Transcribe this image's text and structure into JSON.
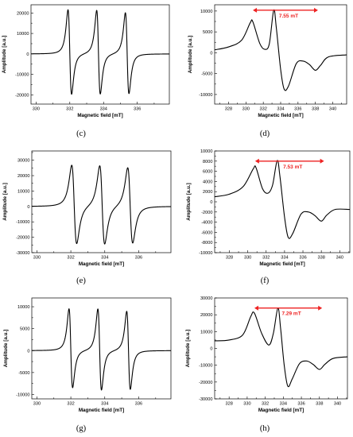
{
  "figure": {
    "panels": [
      {
        "id": "c",
        "caption": "(c)"
      },
      {
        "id": "d",
        "caption": "(d)"
      },
      {
        "id": "e",
        "caption": "(e)"
      },
      {
        "id": "f",
        "caption": "(f)"
      },
      {
        "id": "g",
        "caption": "(g)"
      },
      {
        "id": "h",
        "caption": "(h)"
      }
    ]
  },
  "chart_data": [
    {
      "id": "c",
      "type": "line",
      "caption": "(c)",
      "xlabel": "Magnetic field [mT]",
      "ylabel": "Amplitude [a.u.]",
      "xlim": [
        329.7,
        337.9
      ],
      "ylim": [
        -24500,
        24000
      ],
      "xticks": [
        330,
        332,
        334,
        336
      ],
      "yticks": [
        -20000,
        -10000,
        0,
        10000,
        20000
      ],
      "line_color": "#000000",
      "series": [
        {
          "kind": "sharp_triplet",
          "centers": [
            332.0,
            333.7,
            335.4
          ],
          "peak_to_peak_width_mT": 0.16,
          "positive_peaks": [
            21500,
            21300,
            20200
          ],
          "negative_peaks": [
            -19800,
            -19600,
            -19300
          ]
        }
      ]
    },
    {
      "id": "d",
      "type": "line",
      "caption": "(d)",
      "xlabel": "Magnetic field [mT]",
      "ylabel": "Amplitude [a.u.]",
      "xlim": [
        326.4,
        341.6
      ],
      "ylim": [
        -12300,
        11500
      ],
      "xticks": [
        328,
        330,
        332,
        334,
        336,
        338,
        340
      ],
      "yticks": [
        -10000,
        -5000,
        0,
        5000,
        10000
      ],
      "line_color": "#000000",
      "series": [
        {
          "kind": "broad_powder",
          "points": [
            [
              326.4,
              700
            ],
            [
              328.0,
              1400
            ],
            [
              329.5,
              3000
            ],
            [
              330.5,
              7200
            ],
            [
              330.8,
              7400
            ],
            [
              331.6,
              2200
            ],
            [
              332.2,
              800
            ],
            [
              332.7,
              2200
            ],
            [
              333.2,
              10200
            ],
            [
              333.5,
              6000
            ],
            [
              334.0,
              -4000
            ],
            [
              334.4,
              -8700
            ],
            [
              334.9,
              -8000
            ],
            [
              335.8,
              -2600
            ],
            [
              336.6,
              -2000
            ],
            [
              337.3,
              -2800
            ],
            [
              338.0,
              -4200
            ],
            [
              338.6,
              -3000
            ],
            [
              339.5,
              -1000
            ],
            [
              341.6,
              -500
            ]
          ]
        }
      ],
      "annotation": {
        "label": "7.55 mT",
        "from_x": 330.8,
        "to_x": 338.3,
        "y": 10200,
        "color": "#ee2222"
      }
    },
    {
      "id": "e",
      "type": "line",
      "caption": "(e)",
      "xlabel": "Magnetic field [mT]",
      "ylabel": "Amplitude [a.u.]",
      "xlim": [
        329.7,
        337.9
      ],
      "ylim": [
        -30000,
        36000
      ],
      "xticks": [
        330,
        332,
        334,
        336
      ],
      "yticks": [
        -30000,
        -20000,
        -10000,
        0,
        10000,
        20000,
        30000
      ],
      "line_color": "#000000",
      "series": [
        {
          "kind": "sharp_triplet",
          "centers": [
            332.2,
            333.85,
            335.5
          ],
          "peak_to_peak_width_mT": 0.22,
          "positive_peaks": [
            26500,
            26500,
            25500
          ],
          "negative_peaks": [
            -24500,
            -24500,
            -23500
          ]
        }
      ]
    },
    {
      "id": "f",
      "type": "line",
      "caption": "(f)",
      "xlabel": "Magnetic field [mT]",
      "ylabel": "Amplitude [a.u.]",
      "xlim": [
        326.4,
        341.1
      ],
      "ylim": [
        -10000,
        10000
      ],
      "xticks": [
        328,
        330,
        332,
        334,
        336,
        338,
        340
      ],
      "yticks": [
        -10000,
        -8000,
        -6000,
        -4000,
        -2000,
        0,
        2000,
        4000,
        6000,
        8000,
        10000
      ],
      "line_color": "#000000",
      "series": [
        {
          "kind": "broad_powder",
          "points": [
            [
              326.4,
              1000
            ],
            [
              328.0,
              1500
            ],
            [
              329.5,
              3000
            ],
            [
              330.6,
              6500
            ],
            [
              330.9,
              6700
            ],
            [
              331.6,
              2600
            ],
            [
              332.2,
              1700
            ],
            [
              332.7,
              3300
            ],
            [
              333.2,
              8100
            ],
            [
              333.5,
              5000
            ],
            [
              334.0,
              -3000
            ],
            [
              334.4,
              -7000
            ],
            [
              334.9,
              -6200
            ],
            [
              335.8,
              -2400
            ],
            [
              336.6,
              -2000
            ],
            [
              337.3,
              -2700
            ],
            [
              338.0,
              -3800
            ],
            [
              338.6,
              -2600
            ],
            [
              339.5,
              -1500
            ],
            [
              341.1,
              -1500
            ]
          ]
        }
      ],
      "annotation": {
        "label": "7.53 mT",
        "from_x": 330.8,
        "to_x": 338.3,
        "y": 8000,
        "color": "#ee2222"
      }
    },
    {
      "id": "g",
      "type": "line",
      "caption": "(g)",
      "xlabel": "Magnetic field [mT]",
      "ylabel": "Amplitude [a.u.]",
      "xlim": [
        329.7,
        337.9
      ],
      "ylim": [
        -11000,
        12000
      ],
      "xticks": [
        330,
        332,
        334,
        336
      ],
      "yticks": [
        -10000,
        -5000,
        0,
        5000,
        10000
      ],
      "line_color": "#000000",
      "series": [
        {
          "kind": "sharp_triplet",
          "centers": [
            332.0,
            333.7,
            335.4
          ],
          "peak_to_peak_width_mT": 0.16,
          "positive_peaks": [
            9500,
            9500,
            9000
          ],
          "negative_peaks": [
            -8500,
            -9000,
            -8800
          ]
        }
      ]
    },
    {
      "id": "h",
      "type": "line",
      "caption": "(h)",
      "xlabel": "Magnetic field [mT]",
      "ylabel": "Amplitude [a.u.]",
      "xlim": [
        326.4,
        341.1
      ],
      "ylim": [
        -30000,
        30000
      ],
      "xticks": [
        328,
        330,
        332,
        334,
        336,
        338,
        340
      ],
      "yticks": [
        -30000,
        -20000,
        -10000,
        0,
        10000,
        20000,
        30000
      ],
      "line_color": "#000000",
      "series": [
        {
          "kind": "broad_powder",
          "points": [
            [
              326.4,
              4500
            ],
            [
              328.0,
              5000
            ],
            [
              329.5,
              8000
            ],
            [
              330.4,
              19000
            ],
            [
              330.8,
              21000
            ],
            [
              331.6,
              9000
            ],
            [
              332.4,
              2000
            ],
            [
              332.9,
              9000
            ],
            [
              333.4,
              24000
            ],
            [
              333.7,
              12000
            ],
            [
              334.1,
              -10000
            ],
            [
              334.5,
              -22500
            ],
            [
              335.0,
              -18000
            ],
            [
              335.8,
              -9000
            ],
            [
              336.6,
              -7500
            ],
            [
              337.3,
              -9500
            ],
            [
              338.0,
              -12500
            ],
            [
              338.6,
              -9500
            ],
            [
              339.5,
              -6000
            ],
            [
              341.1,
              -5000
            ]
          ]
        }
      ],
      "annotation": {
        "label": "7.29 mT",
        "from_x": 330.8,
        "to_x": 338.3,
        "y": 24000,
        "color": "#ee2222"
      }
    }
  ]
}
